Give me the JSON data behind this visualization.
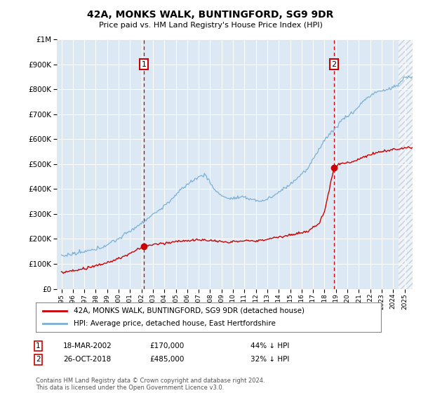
{
  "title": "42A, MONKS WALK, BUNTINGFORD, SG9 9DR",
  "subtitle": "Price paid vs. HM Land Registry's House Price Index (HPI)",
  "legend_line1": "42A, MONKS WALK, BUNTINGFORD, SG9 9DR (detached house)",
  "legend_line2": "HPI: Average price, detached house, East Hertfordshire",
  "transaction1_date": "18-MAR-2002",
  "transaction1_price": "£170,000",
  "transaction1_hpi": "44% ↓ HPI",
  "transaction2_date": "26-OCT-2018",
  "transaction2_price": "£485,000",
  "transaction2_hpi": "32% ↓ HPI",
  "footnote": "Contains HM Land Registry data © Crown copyright and database right 2024.\nThis data is licensed under the Open Government Licence v3.0.",
  "hpi_line_color": "#7bafd4",
  "price_line_color": "#cc0000",
  "vline_color": "#cc0000",
  "marker_color": "#cc0000",
  "plot_bg_color": "#dce9f5",
  "ylim_min": 0,
  "ylim_max": 1000000,
  "t1_year": 2002.21,
  "t2_year": 2018.83,
  "t1_price": 170000,
  "t2_price": 485000
}
